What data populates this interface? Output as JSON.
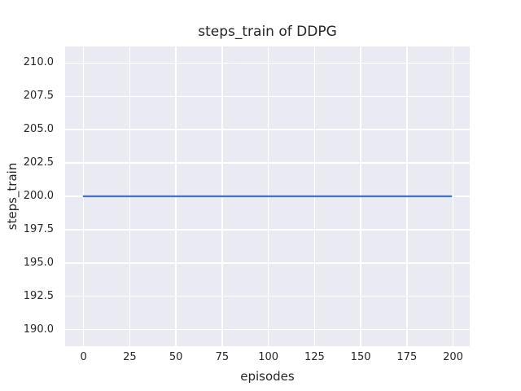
{
  "chart_data": {
    "type": "line",
    "title": "steps_train of DDPG",
    "xlabel": "episodes",
    "ylabel": "steps_train",
    "x_ticks": {
      "values": [
        0,
        25,
        50,
        75,
        100,
        125,
        150,
        175,
        200
      ],
      "labels": [
        "0",
        "25",
        "50",
        "75",
        "100",
        "125",
        "150",
        "175",
        "200"
      ]
    },
    "y_ticks": {
      "values": [
        190.0,
        192.5,
        195.0,
        197.5,
        200.0,
        202.5,
        205.0,
        207.5,
        210.0
      ],
      "labels": [
        "190.0",
        "192.5",
        "195.0",
        "197.5",
        "200.0",
        "202.5",
        "205.0",
        "207.5",
        "210.0"
      ]
    },
    "xlim": [
      -10,
      209
    ],
    "ylim": [
      188.75,
      211.25
    ],
    "grid": true,
    "legend": "none",
    "series": [
      {
        "name": "steps_train",
        "color": "#4c72b0",
        "x": [
          0,
          199
        ],
        "y": [
          200,
          200
        ]
      }
    ],
    "style": {
      "figure_background": "#ffffff",
      "axes_background": "#eaeaf2",
      "grid_color": "#ffffff",
      "text_color": "#262626"
    }
  }
}
